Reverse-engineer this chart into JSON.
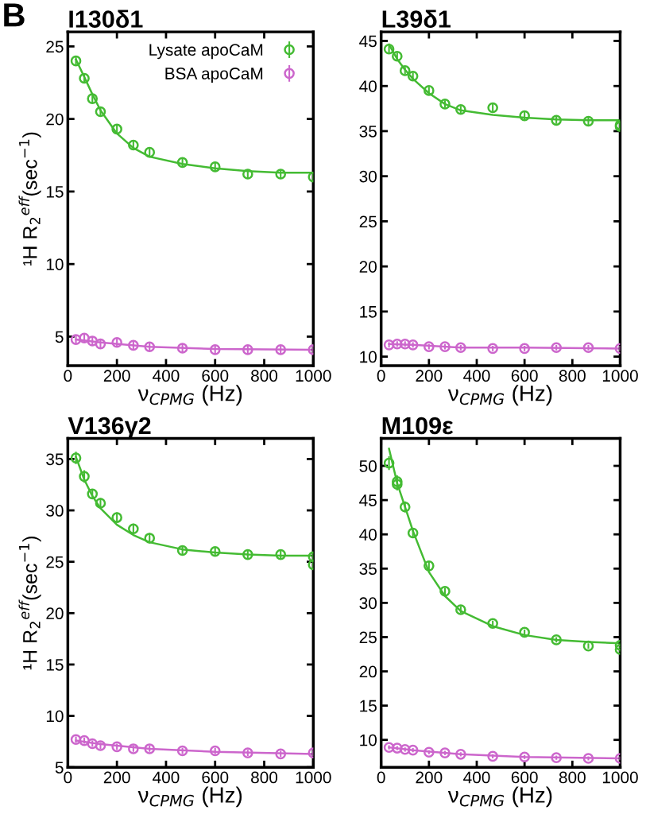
{
  "chart_data": [
    {
      "type": "scatter",
      "title": "I130δ1",
      "xlabel": "ν$_{CPMG}$ (Hz)",
      "ylabel": "¹H R$_{2}$$^{eff}$(sec$^{−1}$)",
      "annotations": [
        "B"
      ],
      "xlim": [
        0,
        1000
      ],
      "ylim": [
        3.0,
        26.0
      ],
      "xticks": [
        0,
        200,
        400,
        600,
        800,
        1000
      ],
      "yticks": [
        5,
        10,
        15,
        20,
        25
      ],
      "legend": "top right",
      "series": [
        {
          "marker": "circle",
          "name": "Lysate apoCaM",
          "color": "#44bb33",
          "x": [
            33,
            67,
            100,
            133,
            200,
            267,
            333,
            467,
            600,
            733,
            867,
            1000
          ],
          "values": [
            24.0,
            22.8,
            21.4,
            20.5,
            19.3,
            18.2,
            17.7,
            17.0,
            16.7,
            16.2,
            16.2,
            16.0
          ],
          "errors": [
            0.3,
            0.3,
            0.3,
            0.3,
            0.3,
            0.3,
            0.3,
            0.3,
            0.3,
            0.3,
            0.3,
            0.3
          ]
        },
        {
          "type": "line",
          "color": "#44bb33",
          "x": [
            33,
            67,
            100,
            133,
            200,
            267,
            333,
            467,
            600,
            733,
            867,
            1000
          ],
          "values": [
            24.1,
            22.9,
            21.7,
            20.6,
            19.0,
            18.0,
            17.4,
            16.9,
            16.6,
            16.4,
            16.3,
            16.3
          ]
        },
        {
          "marker": "circle",
          "name": "BSA apoCaM",
          "color": "#cc66cc",
          "x": [
            33,
            67,
            100,
            133,
            200,
            267,
            333,
            467,
            600,
            733,
            867,
            1000
          ],
          "values": [
            4.8,
            4.9,
            4.7,
            4.5,
            4.6,
            4.4,
            4.3,
            4.2,
            4.1,
            4.1,
            4.1,
            4.1
          ],
          "errors": [
            0.3,
            0.3,
            0.3,
            0.3,
            0.3,
            0.3,
            0.3,
            0.3,
            0.3,
            0.3,
            0.3,
            0.3
          ]
        },
        {
          "type": "line",
          "color": "#cc66cc",
          "x": [
            33,
            133,
            333,
            600,
            1000
          ],
          "values": [
            4.8,
            4.6,
            4.3,
            4.15,
            4.1
          ]
        }
      ]
    },
    {
      "type": "scatter",
      "title": "L39δ1",
      "xlabel": "ν$_{CPMG}$ (Hz)",
      "xlim": [
        0,
        1000
      ],
      "ylim": [
        9,
        46
      ],
      "xticks": [
        0,
        200,
        400,
        600,
        800,
        1000
      ],
      "yticks": [
        10,
        15,
        20,
        25,
        30,
        35,
        40,
        45
      ],
      "series": [
        {
          "marker": "circle",
          "color": "#44bb33",
          "x": [
            33,
            67,
            100,
            133,
            200,
            267,
            333,
            467,
            600,
            733,
            867,
            1000,
            1000
          ],
          "values": [
            44.1,
            43.3,
            41.7,
            41.1,
            39.5,
            38.0,
            37.4,
            37.6,
            36.7,
            36.2,
            36.1,
            35.7,
            35.5
          ],
          "errors": [
            0.4,
            0.4,
            0.4,
            0.4,
            0.4,
            0.4,
            0.4,
            0.4,
            0.4,
            0.4,
            0.4,
            0.4,
            0.4
          ]
        },
        {
          "type": "line",
          "color": "#44bb33",
          "x": [
            33,
            67,
            100,
            133,
            200,
            267,
            333,
            467,
            600,
            733,
            867,
            1000
          ],
          "values": [
            44.6,
            43.0,
            41.8,
            40.8,
            39.2,
            38.0,
            37.3,
            36.8,
            36.5,
            36.3,
            36.2,
            36.2
          ]
        },
        {
          "marker": "circle",
          "color": "#cc66cc",
          "x": [
            33,
            67,
            100,
            133,
            200,
            267,
            333,
            467,
            600,
            733,
            867,
            1000
          ],
          "values": [
            11.3,
            11.4,
            11.4,
            11.3,
            11.1,
            11.1,
            11.0,
            10.9,
            10.9,
            11.0,
            11.0,
            10.9
          ],
          "errors": [
            0.3,
            0.3,
            0.3,
            0.3,
            0.3,
            0.3,
            0.3,
            0.3,
            0.3,
            0.3,
            0.3,
            0.3
          ]
        },
        {
          "type": "line",
          "color": "#cc66cc",
          "x": [
            33,
            133,
            333,
            600,
            1000
          ],
          "values": [
            11.4,
            11.3,
            11.0,
            11.0,
            10.9
          ]
        }
      ]
    },
    {
      "type": "scatter",
      "title": "V136γ2",
      "xlabel": "ν$_{CPMG}$ (Hz)",
      "ylabel": "¹H R$_{2}$$^{eff}$(sec$^{−1}$)",
      "xlim": [
        0,
        1000
      ],
      "ylim": [
        5,
        37
      ],
      "xticks": [
        0,
        200,
        400,
        600,
        800,
        1000
      ],
      "yticks": [
        5,
        10,
        15,
        20,
        25,
        30,
        35
      ],
      "series": [
        {
          "marker": "circle",
          "color": "#44bb33",
          "x": [
            33,
            67,
            100,
            133,
            200,
            267,
            333,
            467,
            600,
            733,
            867,
            1000,
            1000
          ],
          "values": [
            35.1,
            33.3,
            31.6,
            30.7,
            29.3,
            28.2,
            27.3,
            26.1,
            26.0,
            25.7,
            25.7,
            25.5,
            24.7
          ],
          "errors": [
            0.6,
            0.6,
            0.5,
            0.5,
            0.5,
            0.5,
            0.5,
            0.5,
            0.4,
            0.4,
            0.4,
            0.4,
            0.4
          ]
        },
        {
          "type": "line",
          "color": "#44bb33",
          "x": [
            33,
            67,
            100,
            133,
            200,
            267,
            333,
            467,
            600,
            733,
            867,
            1000
          ],
          "values": [
            35.2,
            33.0,
            31.4,
            30.2,
            28.6,
            27.6,
            26.9,
            26.2,
            25.9,
            25.7,
            25.6,
            25.6
          ]
        },
        {
          "marker": "circle",
          "color": "#cc66cc",
          "x": [
            33,
            67,
            100,
            133,
            200,
            267,
            333,
            467,
            600,
            733,
            867,
            1000
          ],
          "values": [
            7.7,
            7.6,
            7.3,
            7.1,
            7.0,
            6.8,
            6.8,
            6.6,
            6.6,
            6.4,
            6.3,
            6.4
          ],
          "errors": [
            0.3,
            0.3,
            0.3,
            0.3,
            0.3,
            0.3,
            0.3,
            0.3,
            0.3,
            0.3,
            0.3,
            0.3
          ]
        },
        {
          "type": "line",
          "color": "#cc66cc",
          "x": [
            33,
            133,
            333,
            600,
            1000
          ],
          "values": [
            7.6,
            7.25,
            6.8,
            6.5,
            6.3
          ]
        }
      ]
    },
    {
      "type": "scatter",
      "title": "M109ε",
      "xlabel": "ν$_{CPMG}$ (Hz)",
      "xlim": [
        0,
        1000
      ],
      "ylim": [
        6,
        54
      ],
      "xticks": [
        0,
        200,
        400,
        600,
        800,
        1000
      ],
      "yticks": [
        10,
        15,
        20,
        25,
        30,
        35,
        40,
        45,
        50
      ],
      "series": [
        {
          "marker": "circle",
          "color": "#44bb33",
          "x": [
            33,
            67,
            67,
            100,
            133,
            200,
            267,
            333,
            467,
            600,
            733,
            867,
            1000,
            1000
          ],
          "values": [
            50.4,
            47.7,
            47.3,
            44.0,
            40.2,
            35.4,
            31.7,
            29.0,
            27.0,
            25.7,
            24.6,
            23.7,
            23.8,
            23.2
          ],
          "errors": [
            1.0,
            0.9,
            0.9,
            0.8,
            0.7,
            0.6,
            0.5,
            0.5,
            0.4,
            0.4,
            0.4,
            0.4,
            0.4,
            0.4
          ]
        },
        {
          "type": "line",
          "color": "#44bb33",
          "x": [
            33,
            67,
            100,
            133,
            200,
            267,
            333,
            467,
            600,
            733,
            867,
            1000
          ],
          "values": [
            52.5,
            47.5,
            44.0,
            40.5,
            34.5,
            31.0,
            28.8,
            26.6,
            25.3,
            24.6,
            24.3,
            24.1
          ]
        },
        {
          "marker": "circle",
          "color": "#cc66cc",
          "x": [
            33,
            67,
            100,
            133,
            200,
            267,
            333,
            467,
            600,
            733,
            867,
            1000
          ],
          "values": [
            8.9,
            8.8,
            8.6,
            8.5,
            8.2,
            8.1,
            7.9,
            7.6,
            7.5,
            7.4,
            7.3,
            7.3
          ],
          "errors": [
            0.3,
            0.3,
            0.3,
            0.3,
            0.3,
            0.3,
            0.3,
            0.3,
            0.3,
            0.3,
            0.3,
            0.3
          ]
        },
        {
          "type": "line",
          "color": "#cc66cc",
          "x": [
            33,
            133,
            333,
            600,
            1000
          ],
          "values": [
            8.9,
            8.5,
            7.9,
            7.5,
            7.3
          ]
        }
      ]
    }
  ]
}
